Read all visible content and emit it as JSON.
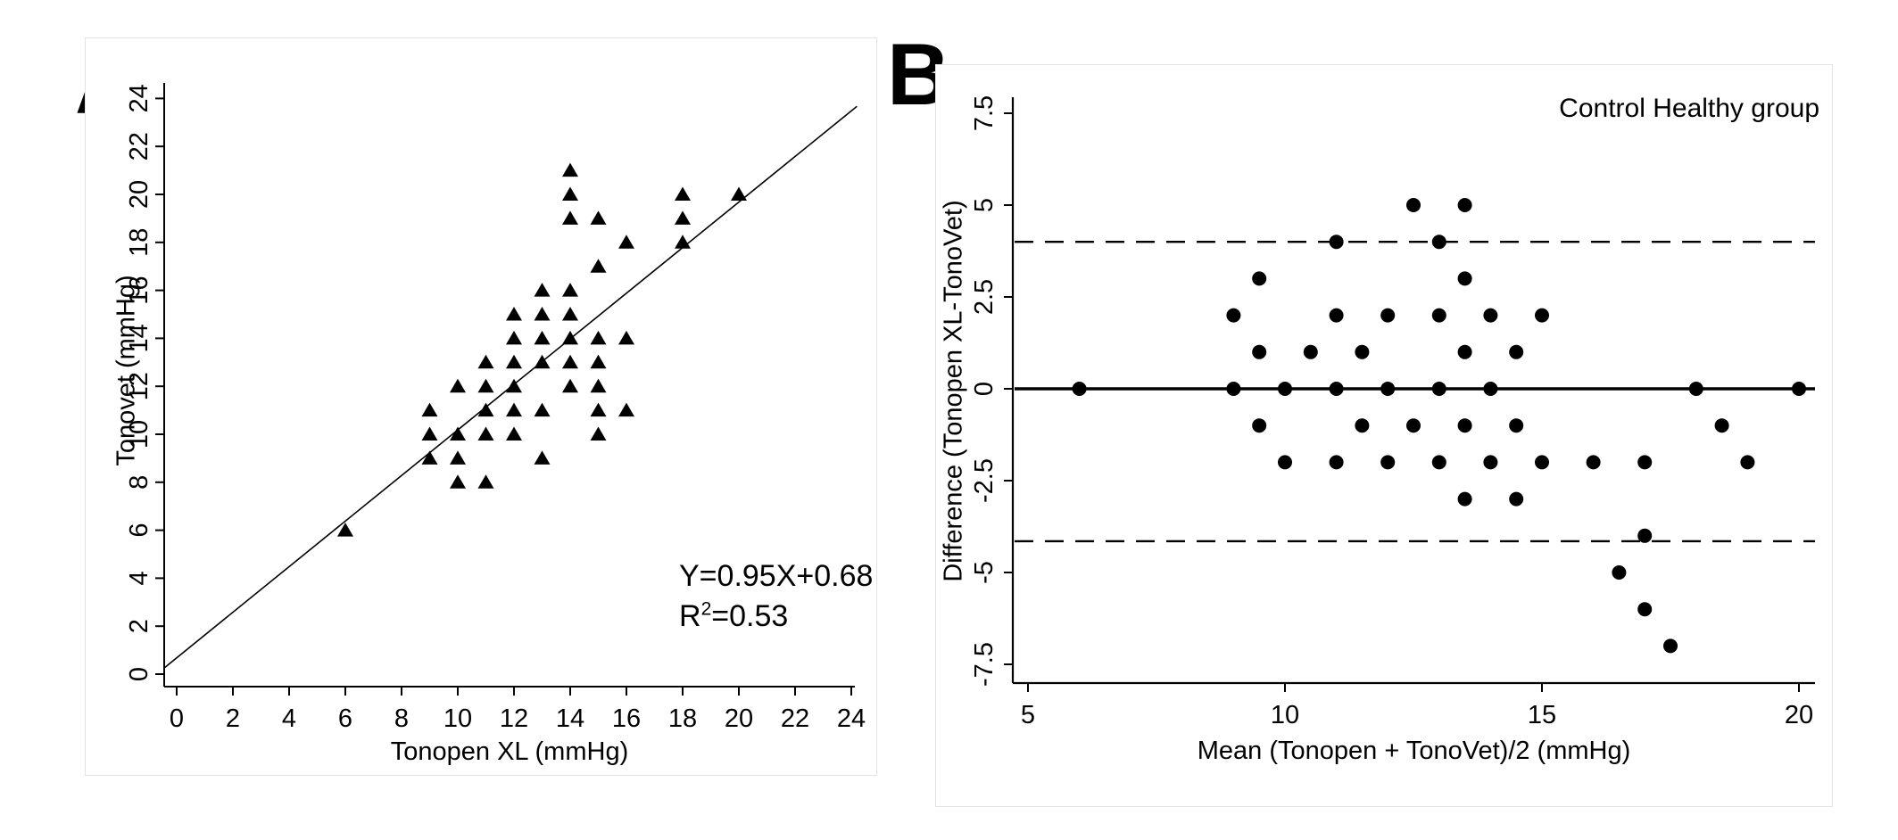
{
  "chart_data": [
    {
      "id": "panel_a",
      "type": "scatter",
      "panel_letter": "A",
      "marker": "triangle",
      "marker_color": "#000000",
      "xlabel": "Tonopen XL (mmHg)",
      "ylabel": "Tonovet (mmHg)",
      "x_ticks": [
        0,
        2,
        4,
        6,
        8,
        10,
        12,
        14,
        16,
        18,
        20,
        22,
        24
      ],
      "y_ticks": [
        0,
        2,
        4,
        6,
        8,
        10,
        12,
        14,
        16,
        18,
        20,
        22,
        24
      ],
      "xlim": [
        -0.45,
        24.3
      ],
      "ylim": [
        -0.5,
        24.5
      ],
      "grid": false,
      "regression": {
        "slope": 0.95,
        "intercept": 0.68,
        "equation": "Y=0.95X+0.68",
        "r2_base": "R",
        "r2_exp": "2",
        "r2_value": "=0.53"
      },
      "points": [
        [
          6,
          6
        ],
        [
          9,
          9
        ],
        [
          9,
          10
        ],
        [
          9,
          11
        ],
        [
          10,
          8
        ],
        [
          10,
          9
        ],
        [
          10,
          10
        ],
        [
          10,
          12
        ],
        [
          11,
          8
        ],
        [
          11,
          10
        ],
        [
          11,
          11
        ],
        [
          11,
          12
        ],
        [
          11,
          13
        ],
        [
          12,
          10
        ],
        [
          12,
          11
        ],
        [
          12,
          12
        ],
        [
          12,
          13
        ],
        [
          12,
          14
        ],
        [
          12,
          15
        ],
        [
          13,
          9
        ],
        [
          13,
          11
        ],
        [
          13,
          13
        ],
        [
          13,
          14
        ],
        [
          13,
          15
        ],
        [
          13,
          16
        ],
        [
          14,
          12
        ],
        [
          14,
          13
        ],
        [
          14,
          14
        ],
        [
          14,
          15
        ],
        [
          14,
          16
        ],
        [
          14,
          19
        ],
        [
          14,
          20
        ],
        [
          14,
          21
        ],
        [
          15,
          10
        ],
        [
          15,
          11
        ],
        [
          15,
          12
        ],
        [
          15,
          13
        ],
        [
          15,
          14
        ],
        [
          15,
          17
        ],
        [
          15,
          19
        ],
        [
          16,
          11
        ],
        [
          16,
          14
        ],
        [
          16,
          18
        ],
        [
          18,
          18
        ],
        [
          18,
          19
        ],
        [
          18,
          20
        ],
        [
          20,
          20
        ]
      ]
    },
    {
      "id": "panel_b",
      "type": "scatter",
      "panel_letter": "B",
      "marker": "circle",
      "marker_color": "#000000",
      "title": "Control Healthy group",
      "xlabel": "Mean (Tonopen + TonoVet)/2 (mmHg)",
      "ylabel": "Difference (Tonopen XL-TonoVet)",
      "x_ticks": [
        5,
        10,
        15,
        20
      ],
      "y_ticks": [
        7.5,
        5,
        2.5,
        0,
        -2.5,
        -5,
        -7.5
      ],
      "xlim": [
        4.7,
        20.35
      ],
      "ylim": [
        -8.05,
        7.9
      ],
      "grid": false,
      "reference_lines": {
        "mean": 0,
        "upper_loa": 4.0,
        "lower_loa": -4.15
      },
      "points": [
        [
          6,
          0
        ],
        [
          9,
          0
        ],
        [
          9,
          2
        ],
        [
          9.5,
          -1
        ],
        [
          9.5,
          1
        ],
        [
          9.5,
          3
        ],
        [
          10,
          -2
        ],
        [
          10,
          0
        ],
        [
          10.5,
          1
        ],
        [
          11,
          -2
        ],
        [
          11,
          0
        ],
        [
          11,
          2
        ],
        [
          11,
          4
        ],
        [
          11.5,
          -1
        ],
        [
          11.5,
          1
        ],
        [
          12,
          -2
        ],
        [
          12,
          0
        ],
        [
          12,
          2
        ],
        [
          12.5,
          -1
        ],
        [
          12.5,
          5
        ],
        [
          13,
          -2
        ],
        [
          13,
          0
        ],
        [
          13,
          2
        ],
        [
          13,
          4
        ],
        [
          13.5,
          -3
        ],
        [
          13.5,
          -1
        ],
        [
          13.5,
          1
        ],
        [
          13.5,
          3
        ],
        [
          13.5,
          5
        ],
        [
          14,
          -2
        ],
        [
          14,
          0
        ],
        [
          14,
          2
        ],
        [
          14.5,
          -3
        ],
        [
          14.5,
          -1
        ],
        [
          14.5,
          1
        ],
        [
          15,
          -2
        ],
        [
          15,
          2
        ],
        [
          16,
          -2
        ],
        [
          16.5,
          -5
        ],
        [
          17,
          -6
        ],
        [
          17,
          -4
        ],
        [
          17,
          -2
        ],
        [
          17.5,
          -7
        ],
        [
          18,
          0
        ],
        [
          18.5,
          -1
        ],
        [
          19,
          -2
        ],
        [
          20,
          0
        ]
      ]
    }
  ]
}
